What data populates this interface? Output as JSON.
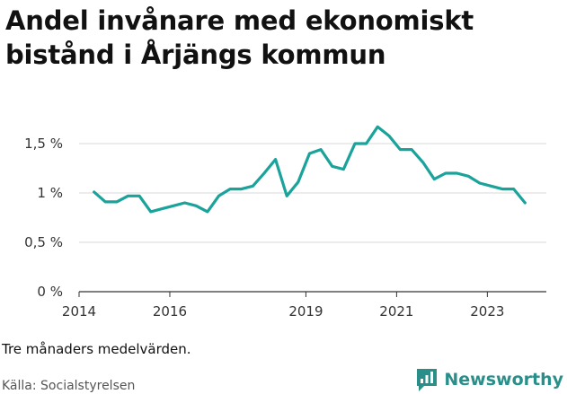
{
  "chart_data": {
    "type": "line",
    "title": "Andel invånare med ekonomiskt bistånd i Årjängs kommun",
    "xlabel": "",
    "ylabel": "",
    "x_ticks": [
      {
        "value": 2014,
        "label": "2014"
      },
      {
        "value": 2016,
        "label": "2016"
      },
      {
        "value": 2019,
        "label": "2019"
      },
      {
        "value": 2021,
        "label": "2021"
      },
      {
        "value": 2023,
        "label": "2023"
      }
    ],
    "y_ticks": [
      {
        "value": 0,
        "label": "0 %"
      },
      {
        "value": 0.5,
        "label": "0,5 %"
      },
      {
        "value": 1,
        "label": "1 %"
      },
      {
        "value": 1.5,
        "label": "1,5 %"
      }
    ],
    "xlim": [
      2014,
      2024.3
    ],
    "ylim": [
      0,
      1.7
    ],
    "grid": true,
    "line_color": "#1aa39a",
    "series": [
      {
        "x": [
          2014.33,
          2014.58,
          2014.83,
          2015.08,
          2015.33,
          2015.58,
          2015.83,
          2016.08,
          2016.33,
          2016.58,
          2016.83,
          2017.08,
          2017.33,
          2017.58,
          2017.83,
          2018.08,
          2018.33,
          2018.58,
          2018.83,
          2019.08,
          2019.33,
          2019.58,
          2019.83,
          2020.08,
          2020.33,
          2020.58,
          2020.83,
          2021.08,
          2021.33,
          2021.58,
          2021.83,
          2022.08,
          2022.33,
          2022.58,
          2022.83,
          2023.08,
          2023.33,
          2023.58,
          2023.83
        ],
        "y": [
          1.01,
          0.91,
          0.91,
          0.97,
          0.97,
          0.81,
          0.84,
          0.87,
          0.9,
          0.87,
          0.81,
          0.97,
          1.04,
          1.04,
          1.07,
          1.2,
          1.34,
          0.97,
          1.11,
          1.4,
          1.44,
          1.27,
          1.24,
          1.5,
          1.5,
          1.67,
          1.58,
          1.44,
          1.44,
          1.31,
          1.14,
          1.2,
          1.2,
          1.17,
          1.1,
          1.07,
          1.04,
          1.04,
          0.9
        ]
      }
    ]
  },
  "note": "Tre månaders medelvärden.",
  "source": "Källa: Socialstyrelsen",
  "brand": {
    "name": "Newsworthy",
    "icon": "bar-chart-speech-bubble-icon",
    "color": "#2a8f89"
  }
}
